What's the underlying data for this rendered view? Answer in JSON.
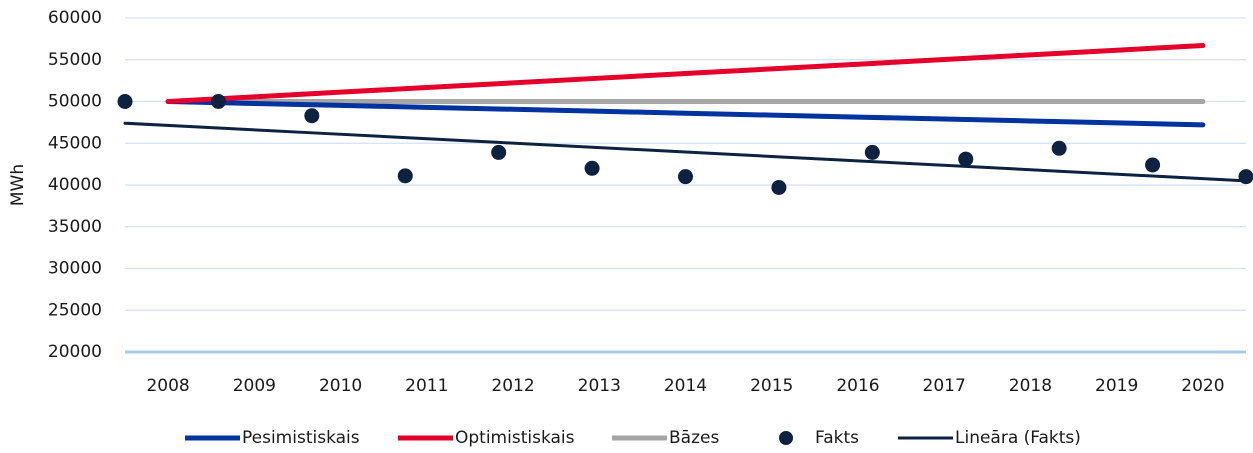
{
  "chart_data": {
    "type": "line",
    "y_label": "MWh",
    "categories": [
      "2008",
      "2009",
      "2010",
      "2011",
      "2012",
      "2013",
      "2014",
      "2015",
      "2016",
      "2017",
      "2018",
      "2019",
      "2020"
    ],
    "series": [
      {
        "name": "Pesimistiskais",
        "color": "#0033a0",
        "style": "line",
        "values": [
          50000,
          49767,
          49533,
          49300,
          49067,
          48833,
          48600,
          48367,
          48133,
          47900,
          47667,
          47433,
          47200
        ]
      },
      {
        "name": "Optimistiskais",
        "color": "#e4002b",
        "style": "line",
        "values": [
          50000,
          50558,
          51117,
          51675,
          52233,
          52792,
          53350,
          53908,
          54467,
          55025,
          55583,
          56142,
          56700
        ]
      },
      {
        "name": "Bāzes",
        "color": "#a5a5a5",
        "style": "line",
        "values": [
          50000,
          50000,
          50000,
          50000,
          50000,
          50000,
          50000,
          50000,
          50000,
          50000,
          50000,
          50000,
          50000
        ]
      },
      {
        "name": "Fakts",
        "color": "#0d2240",
        "style": "scatter",
        "values": [
          50000,
          50000,
          48300,
          41100,
          43900,
          42000,
          41000,
          39700,
          43900,
          43100,
          44400,
          42400,
          41000
        ]
      },
      {
        "name": "Lineāra (Fakts)",
        "color": "#0d2240",
        "style": "trend",
        "values": [
          47400,
          46825,
          46250,
          45675,
          45100,
          44525,
          43950,
          43375,
          42800,
          42225,
          41650,
          41075,
          40500
        ]
      }
    ],
    "ylim": [
      20000,
      60000
    ],
    "yticks": [
      20000,
      25000,
      30000,
      35000,
      40000,
      45000,
      50000,
      55000,
      60000
    ],
    "grid": true,
    "legend": "bottom"
  }
}
